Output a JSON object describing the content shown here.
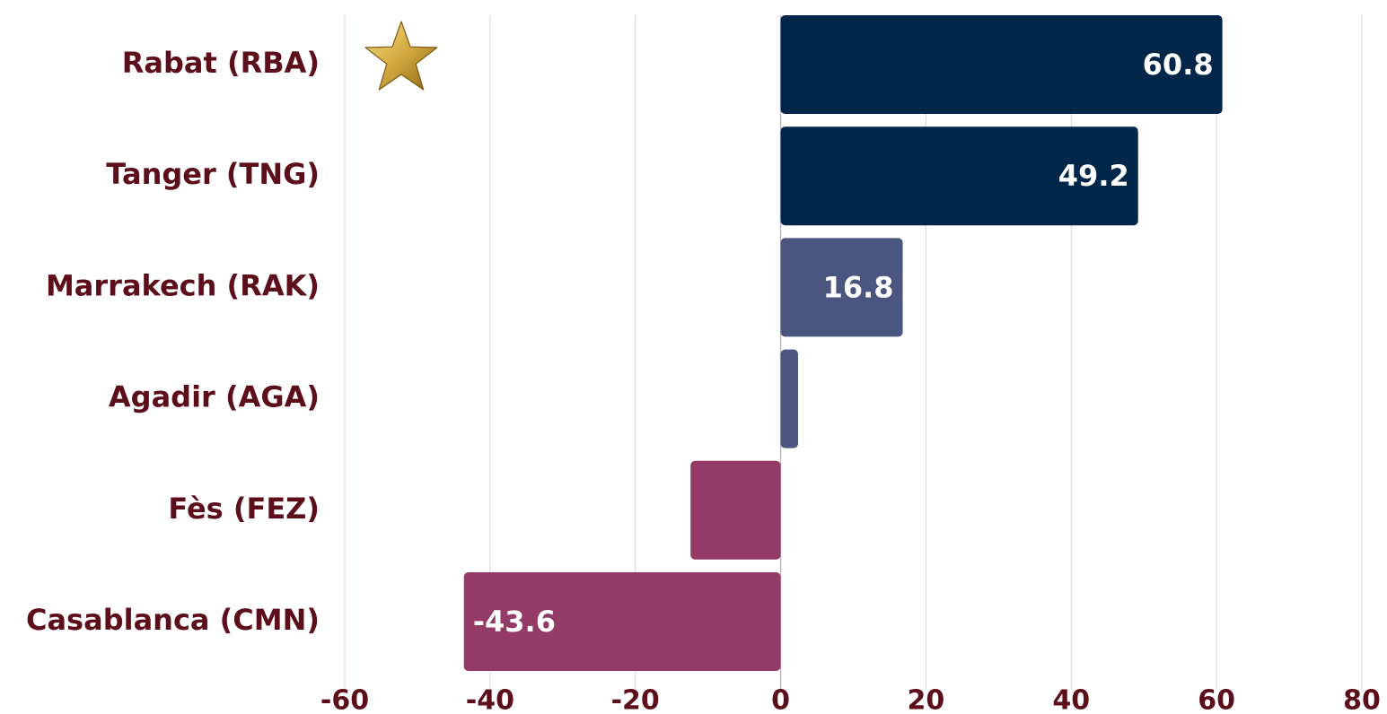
{
  "chart_data": {
    "type": "bar",
    "orientation": "horizontal",
    "categories": [
      "Rabat (RBA)",
      "Tanger (TNG)",
      "Marrakech (RAK)",
      "Agadir (AGA)",
      "Fès (FEZ)",
      "Casablanca (CMN)"
    ],
    "values": [
      60.8,
      49.2,
      16.8,
      2.4,
      -12.4,
      -43.6
    ],
    "data_labels": [
      "60.8",
      "49.2",
      "16.8",
      "",
      "",
      "-43.6"
    ],
    "bar_colors": [
      "#00264a",
      "#00264a",
      "#4a567f",
      "#4a567f",
      "#943a66",
      "#943a66"
    ],
    "highlight": {
      "category": "Rabat (RBA)",
      "marker": "gold-star-icon"
    },
    "xlim": [
      -60,
      80
    ],
    "xticks": [
      -60,
      -40,
      -20,
      0,
      20,
      40,
      60,
      80
    ],
    "xtick_labels": [
      "-60",
      "-40",
      "-20",
      "0",
      "20",
      "40",
      "60",
      "80"
    ],
    "title": "",
    "xlabel": "",
    "ylabel": "",
    "grid": true,
    "legend": "none",
    "colors": {
      "label_text": "#5c0f1a",
      "gridline": "#e8d5da",
      "zero_line": "#c9b3ba",
      "data_label": "#ffffff",
      "star": "#c9a23b"
    }
  }
}
